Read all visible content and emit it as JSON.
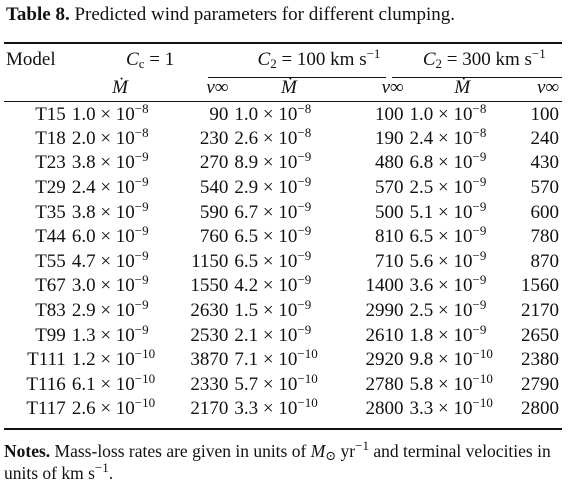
{
  "caption": {
    "label": "Table 8.",
    "text": "Predicted wind parameters for different clumping."
  },
  "columns": {
    "model": "Model",
    "groups": [
      "C_c = 1",
      "C_2 = 100 km s^-1",
      "C_2 = 300 km s^-1"
    ],
    "mdot": "Ṁ",
    "vinf": "v∞"
  },
  "rows": [
    {
      "model": "T15",
      "m1": "1.0 × 10^-8",
      "v1": "90",
      "m2": "1.0 × 10^-8",
      "v2": "100",
      "m3": "1.0 × 10^-8",
      "v3": "100"
    },
    {
      "model": "T18",
      "m1": "2.0 × 10^-8",
      "v1": "230",
      "m2": "2.6 × 10^-8",
      "v2": "190",
      "m3": "2.4 × 10^-8",
      "v3": "240"
    },
    {
      "model": "T23",
      "m1": "3.8 × 10^-9",
      "v1": "270",
      "m2": "8.9 × 10^-9",
      "v2": "480",
      "m3": "6.8 × 10^-9",
      "v3": "430"
    },
    {
      "model": "T29",
      "m1": "2.4 × 10^-9",
      "v1": "540",
      "m2": "2.9 × 10^-9",
      "v2": "570",
      "m3": "2.5 × 10^-9",
      "v3": "570"
    },
    {
      "model": "T35",
      "m1": "3.8 × 10^-9",
      "v1": "590",
      "m2": "6.7 × 10^-9",
      "v2": "500",
      "m3": "5.1 × 10^-9",
      "v3": "600"
    },
    {
      "model": "T44",
      "m1": "6.0 × 10^-9",
      "v1": "760",
      "m2": "6.5 × 10^-9",
      "v2": "810",
      "m3": "6.5 × 10^-9",
      "v3": "780"
    },
    {
      "model": "T55",
      "m1": "4.7 × 10^-9",
      "v1": "1150",
      "m2": "6.5 × 10^-9",
      "v2": "710",
      "m3": "5.6 × 10^-9",
      "v3": "870"
    },
    {
      "model": "T67",
      "m1": "3.0 × 10^-9",
      "v1": "1550",
      "m2": "4.2 × 10^-9",
      "v2": "1400",
      "m3": "3.6 × 10^-9",
      "v3": "1560"
    },
    {
      "model": "T83",
      "m1": "2.9 × 10^-9",
      "v1": "2630",
      "m2": "1.5 × 10^-9",
      "v2": "2990",
      "m3": "2.5 × 10^-9",
      "v3": "2170"
    },
    {
      "model": "T99",
      "m1": "1.3 × 10^-9",
      "v1": "2530",
      "m2": "2.1 × 10^-9",
      "v2": "2610",
      "m3": "1.8 × 10^-9",
      "v3": "2650"
    },
    {
      "model": "T111",
      "m1": "1.2 × 10^-10",
      "v1": "3870",
      "m2": "7.1 × 10^-10",
      "v2": "2920",
      "m3": "9.8 × 10^-10",
      "v3": "2380"
    },
    {
      "model": "T116",
      "m1": "6.1 × 10^-10",
      "v1": "2330",
      "m2": "5.7 × 10^-10",
      "v2": "2780",
      "m3": "5.8 × 10^-10",
      "v3": "2790"
    },
    {
      "model": "T117",
      "m1": "2.6 × 10^-10",
      "v1": "2170",
      "m2": "3.3 × 10^-10",
      "v2": "2800",
      "m3": "3.3 × 10^-10",
      "v3": "2800"
    }
  ],
  "notes": {
    "label": "Notes.",
    "text": "Mass-loss rates are given in units of M⊙ yr^-1 and terminal velocities in units of km s^-1."
  }
}
